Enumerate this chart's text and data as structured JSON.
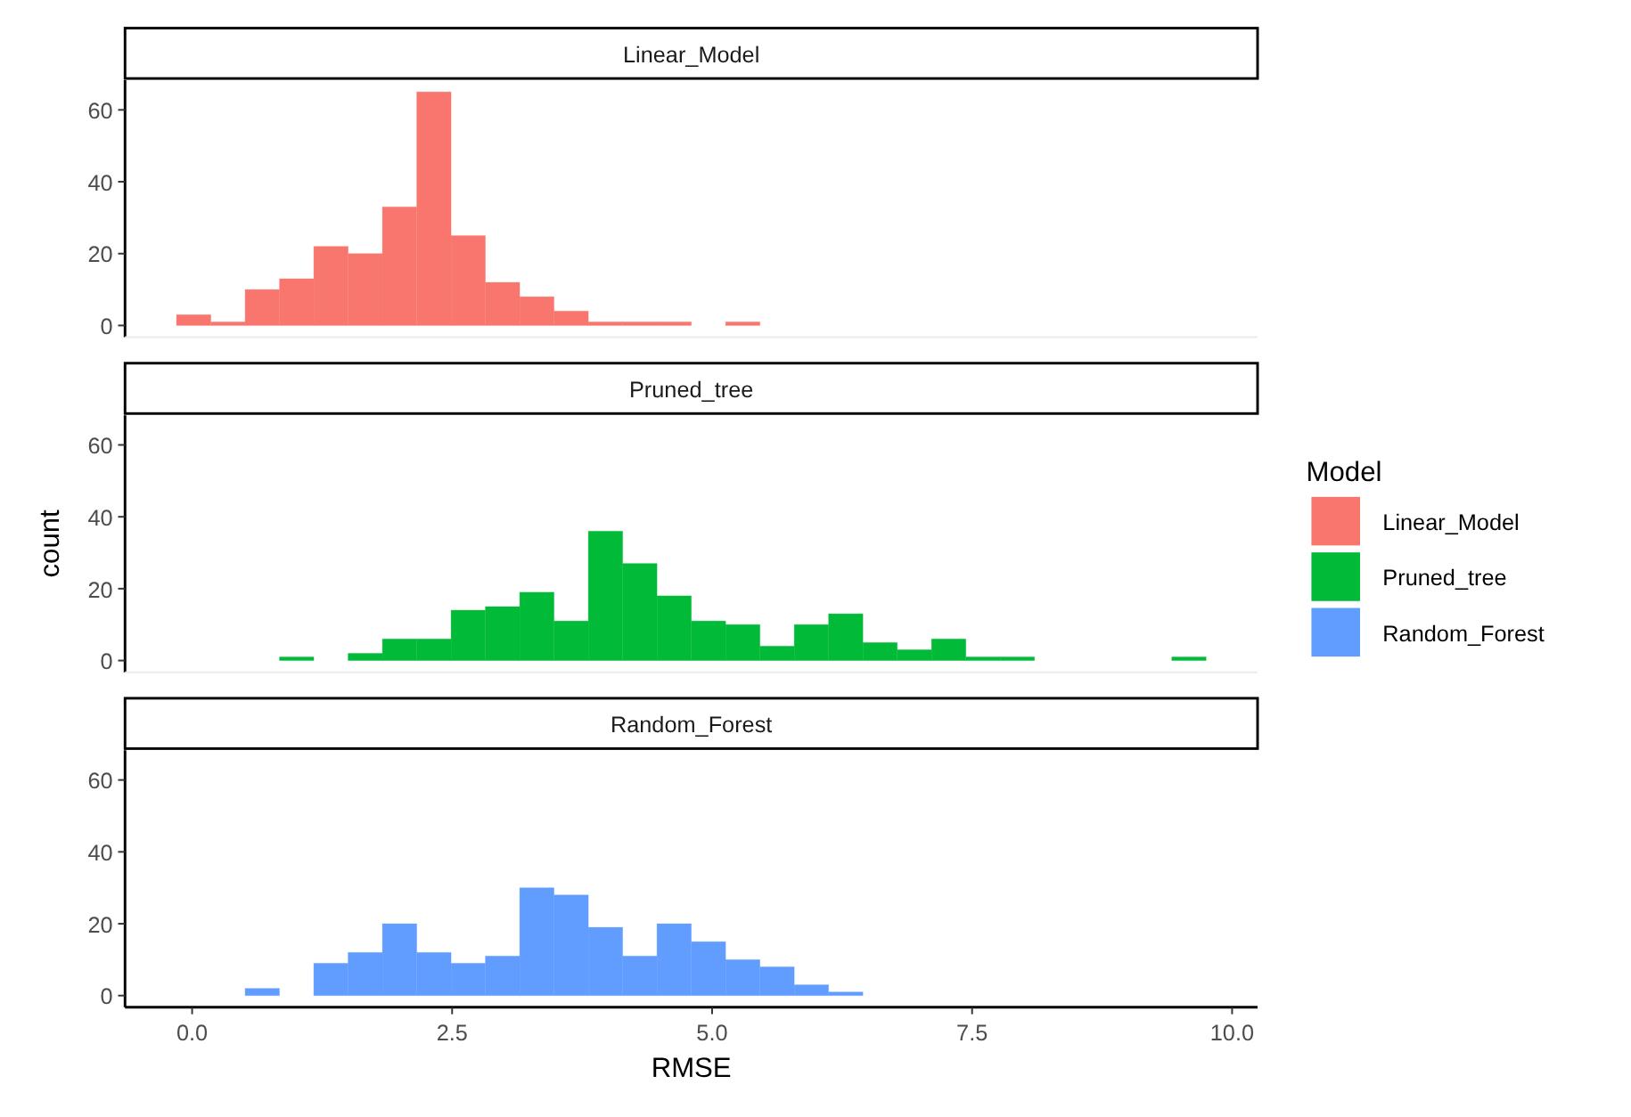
{
  "chart_data": [
    {
      "type": "histogram",
      "title": "Linear_Model",
      "bins": [
        -0.15,
        0.18,
        0.51,
        0.84,
        1.17,
        1.5,
        1.83,
        2.16,
        2.49,
        2.82,
        3.15,
        3.48,
        3.81,
        4.14,
        4.47,
        4.8,
        5.13,
        5.46,
        5.79,
        6.12,
        6.45,
        6.78,
        7.11,
        7.44,
        7.77,
        8.1,
        8.43,
        8.76,
        9.09,
        9.42,
        9.75
      ],
      "series": [
        {
          "name": "Linear_Model",
          "color": "#f8766d",
          "values": [
            3,
            1,
            10,
            13,
            22,
            20,
            33,
            65,
            25,
            12,
            8,
            4,
            1,
            1,
            1,
            0,
            1,
            0,
            0,
            0,
            0,
            0,
            0,
            0,
            0,
            0,
            0,
            0,
            0,
            0
          ]
        }
      ],
      "xlim": [
        -0.645,
        10.245
      ],
      "ylim": [
        -3.25,
        68.25
      ],
      "yticks": [
        0,
        20,
        40,
        60
      ],
      "tick_labels": "y",
      "legend": "right"
    },
    {
      "type": "histogram",
      "title": "Pruned_tree",
      "ylabel": "count",
      "legend_title": "Model",
      "legend": "right",
      "bins": [
        -0.15,
        0.18,
        0.51,
        0.84,
        1.17,
        1.5,
        1.83,
        2.16,
        2.49,
        2.82,
        3.15,
        3.48,
        3.81,
        4.14,
        4.47,
        4.8,
        5.13,
        5.46,
        5.79,
        6.12,
        6.45,
        6.78,
        7.11,
        7.44,
        7.77,
        8.1,
        8.43,
        8.76,
        9.09,
        9.42,
        9.75
      ],
      "series": [
        {
          "name": "Pruned_tree",
          "color": "#00ba38",
          "values": [
            0,
            0,
            0,
            1,
            0,
            2,
            6,
            6,
            14,
            15,
            19,
            11,
            36,
            27,
            18,
            11,
            10,
            4,
            10,
            13,
            5,
            3,
            6,
            1,
            1,
            0,
            0,
            0,
            0,
            1
          ]
        }
      ],
      "xlim": [
        -0.645,
        10.245
      ],
      "ylim": [
        -3.25,
        68.25
      ],
      "yticks": [
        0,
        20,
        40,
        60
      ],
      "tick_labels": "y"
    },
    {
      "type": "histogram",
      "title": "Random_Forest",
      "xlabel": "RMSE",
      "bins": [
        -0.15,
        0.18,
        0.51,
        0.84,
        1.17,
        1.5,
        1.83,
        2.16,
        2.49,
        2.82,
        3.15,
        3.48,
        3.81,
        4.14,
        4.47,
        4.8,
        5.13,
        5.46,
        5.79,
        6.12,
        6.45,
        6.78,
        7.11,
        7.44,
        7.77,
        8.1,
        8.43,
        8.76,
        9.09,
        9.42,
        9.75
      ],
      "series": [
        {
          "name": "Random_Forest",
          "color": "#619cff",
          "values": [
            0,
            0,
            2,
            0,
            9,
            12,
            20,
            12,
            9,
            11,
            30,
            28,
            19,
            11,
            20,
            15,
            10,
            8,
            3,
            1,
            0,
            0,
            0,
            0,
            0,
            0,
            0,
            0,
            0,
            0
          ]
        }
      ],
      "xlim": [
        -0.645,
        10.245
      ],
      "xticks": [
        {
          "value": 0,
          "label": "0.0"
        },
        {
          "value": 2.5,
          "label": "2.5"
        },
        {
          "value": 5,
          "label": "5.0"
        },
        {
          "value": 7.5,
          "label": "7.5"
        },
        {
          "value": 10,
          "label": "10.0"
        }
      ],
      "ylim": [
        -3.25,
        68.25
      ],
      "yticks": [
        0,
        20,
        40,
        60
      ],
      "legend": "right"
    }
  ]
}
